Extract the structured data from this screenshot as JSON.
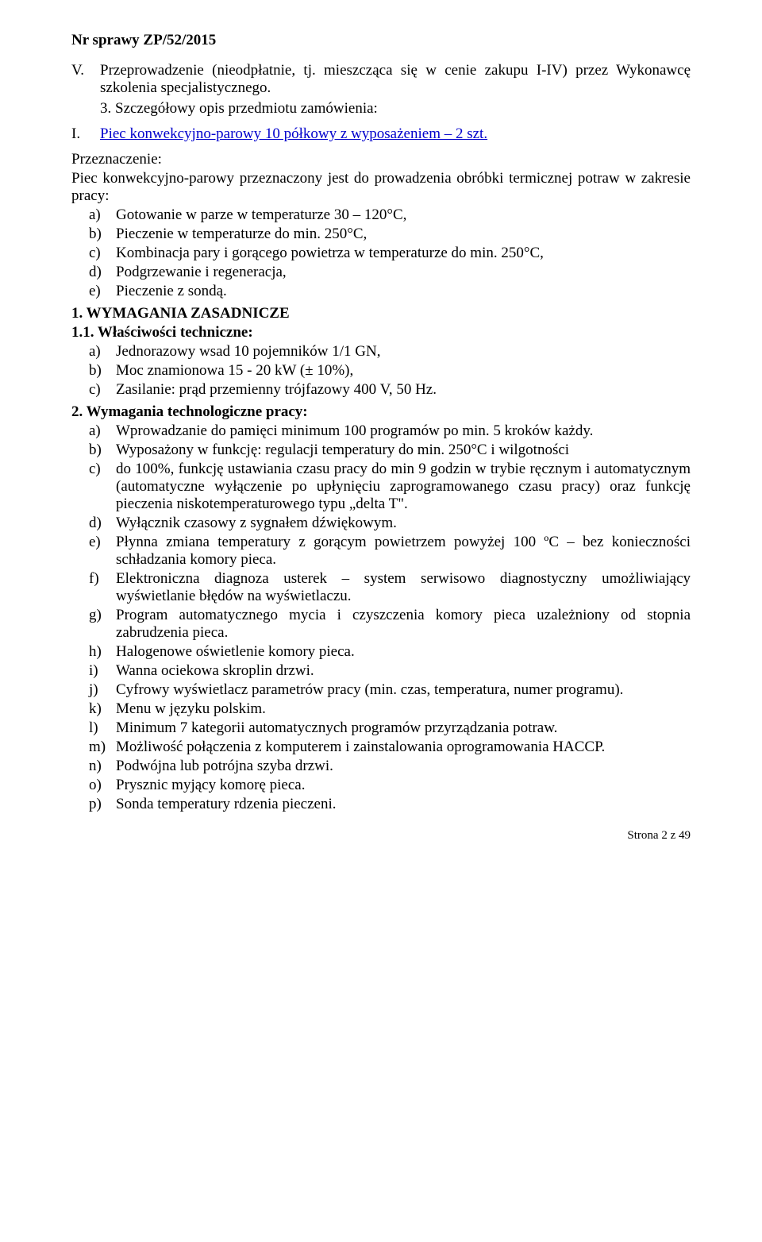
{
  "header": "Nr sprawy ZP/52/2015",
  "itemV": {
    "label": "V.",
    "text": "Przeprowadzenie (nieodpłatnie, tj. mieszcząca się w cenie zakupu I-IV)     przez Wykonawcę szkolenia specjalistycznego."
  },
  "item3": "3.  Szczegółowy opis przedmiotu zamówienia:",
  "itemI": {
    "label": "I.",
    "text": "Piec konwekcyjno-parowy 10 półkowy z wyposażeniem – 2 szt."
  },
  "przez_label": "Przeznaczenie:",
  "przez_text": "Piec konwekcyjno-parowy przeznaczony jest do prowadzenia obróbki termicznej potraw w zakresie pracy:",
  "list1": [
    {
      "l": "a)",
      "t": "Gotowanie w parze w temperaturze 30 – 120°C,"
    },
    {
      "l": "b)",
      "t": "Pieczenie w temperaturze do min. 250°C,"
    },
    {
      "l": "c)",
      "t": "Kombinacja pary i gorącego powietrza w temperaturze do min. 250°C,"
    },
    {
      "l": "d)",
      "t": "Podgrzewanie i regeneracja,"
    },
    {
      "l": "e)",
      "t": "Pieczenie z sondą."
    }
  ],
  "sec1": "1. WYMAGANIA ZASADNICZE",
  "sec11": "1.1. Właściwości techniczne:",
  "list2": [
    {
      "l": "a)",
      "t": "Jednorazowy wsad 10 pojemników 1/1 GN,"
    },
    {
      "l": "b)",
      "t": "Moc znamionowa 15 - 20 kW (± 10%),"
    },
    {
      "l": "c)",
      "t": "Zasilanie: prąd przemienny trójfazowy 400 V, 50 Hz."
    }
  ],
  "sec2": "2. Wymagania technologiczne pracy:",
  "list3": [
    {
      "l": "a)",
      "t": "Wprowadzanie do pamięci minimum 100 programów po min. 5 kroków każdy."
    },
    {
      "l": "b)",
      "t": "Wyposażony w funkcję: regulacji temperatury do min. 250°C i wilgotności"
    },
    {
      "l": "c)",
      "t": "do 100%, funkcję ustawiania czasu pracy do min 9 godzin w trybie ręcznym i automatycznym (automatyczne wyłączenie po upłynięciu zaprogramowanego czasu pracy) oraz funkcję pieczenia niskotemperaturowego typu „delta T\"."
    },
    {
      "l": "d)",
      "t": "Wyłącznik czasowy z sygnałem dźwiękowym."
    },
    {
      "l": "e)",
      "t": "Płynna zmiana temperatury z gorącym powietrzem powyżej 100 ºC – bez konieczności schładzania komory pieca."
    },
    {
      "l": "f)",
      "t": "Elektroniczna diagnoza usterek – system serwisowo diagnostyczny umożliwiający wyświetlanie błędów na wyświetlaczu."
    },
    {
      "l": "g)",
      "t": "Program automatycznego mycia i czyszczenia komory pieca uzależniony od stopnia zabrudzenia pieca."
    },
    {
      "l": "h)",
      "t": "Halogenowe oświetlenie komory pieca."
    },
    {
      "l": "i)",
      "t": "Wanna ociekowa skroplin drzwi."
    },
    {
      "l": "j)",
      "t": "Cyfrowy wyświetlacz parametrów pracy (min. czas, temperatura, numer programu)."
    },
    {
      "l": "k)",
      "t": "Menu w języku polskim."
    },
    {
      "l": "l)",
      "t": "Minimum 7 kategorii automatycznych programów przyrządzania potraw."
    },
    {
      "l": "m)",
      "t": "Możliwość połączenia z komputerem i zainstalowania oprogramowania HACCP."
    },
    {
      "l": "n)",
      "t": "Podwójna lub potrójna szyba drzwi."
    },
    {
      "l": "o)",
      "t": "Prysznic myjący komorę pieca."
    },
    {
      "l": "p)",
      "t": "Sonda temperatury rdzenia pieczeni."
    }
  ],
  "footer": "Strona 2 z 49"
}
